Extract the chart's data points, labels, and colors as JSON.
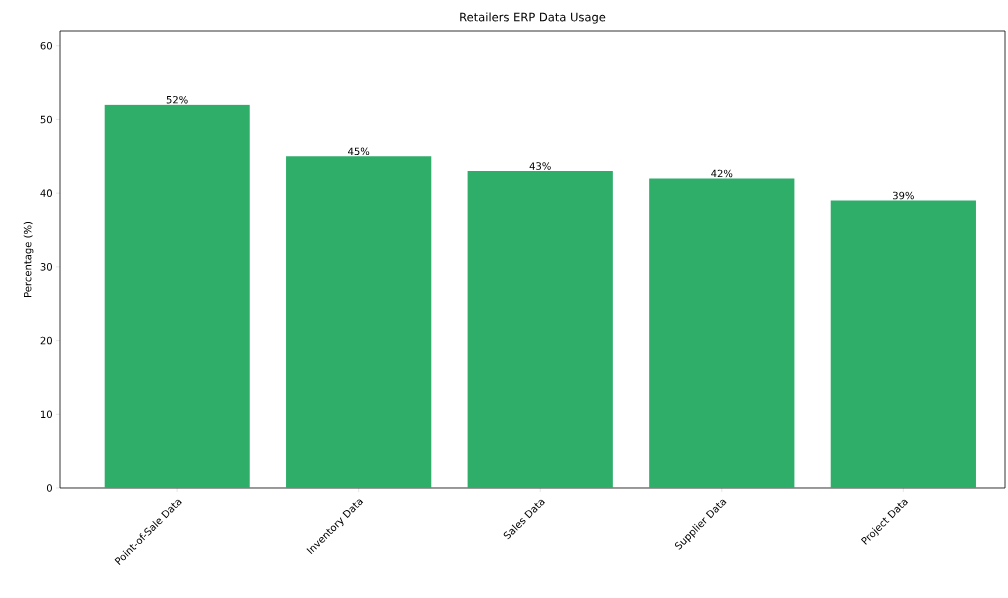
{
  "chart_data": {
    "type": "bar",
    "title": "Retailers ERP Data Usage",
    "ylabel": "Percentage (%)",
    "categories": [
      "Point-of-Sale Data",
      "Inventory Data",
      "Sales Data",
      "Supplier Data",
      "Project Data"
    ],
    "values": [
      52,
      45,
      43,
      42,
      39
    ],
    "value_labels": [
      "52%",
      "45%",
      "43%",
      "42%",
      "39%"
    ],
    "color": "#2fae6a",
    "ylim": [
      0,
      62
    ],
    "yticks": [
      0,
      10,
      20,
      30,
      40,
      50,
      60
    ],
    "grid": false
  }
}
